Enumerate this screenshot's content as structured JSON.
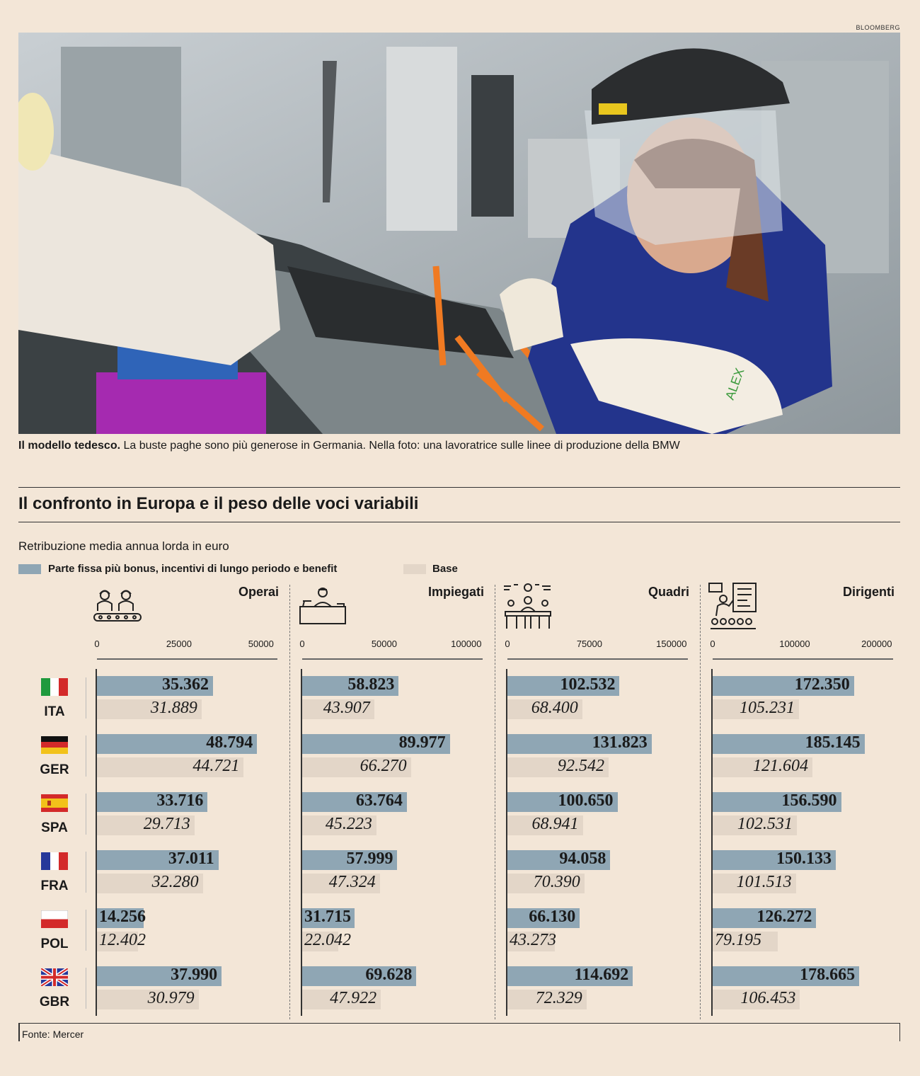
{
  "credit": "BLOOMBERG",
  "caption": {
    "lead": "Il modello tedesco.",
    "text": " La buste paghe sono più generose in Germania. Nella foto: una lavoratrice sulle linee di produzione della BMW"
  },
  "title": "Il confronto in Europa e il peso delle voci variabili",
  "subtitle": "Retribuzione media annua lorda in euro",
  "legend": {
    "total": "Parte fissa più bonus, incentivi di lungo periodo e benefit",
    "base": "Base"
  },
  "colors": {
    "total": "#8fa6b4",
    "base": "#e3d6c8",
    "background": "#f3e6d7"
  },
  "source": "Fonte: Mercer",
  "chart_data": {
    "type": "bar",
    "categories": [
      "ITA",
      "GER",
      "SPA",
      "FRA",
      "POL",
      "GBR"
    ],
    "panels": [
      {
        "name": "Operai",
        "icon": "factory-workers-icon",
        "xlim": [
          0,
          55000
        ],
        "ticks": [
          0,
          25000,
          50000
        ],
        "series": [
          {
            "name": "Parte fissa più bonus, incentivi di lungo periodo e benefit",
            "values": [
              35362,
              48794,
              33716,
              37011,
              14256,
              37990
            ],
            "labels": [
              "35.362",
              "48.794",
              "33.716",
              "37.011",
              "14.256",
              "37.990"
            ]
          },
          {
            "name": "Base",
            "values": [
              31889,
              44721,
              29713,
              32280,
              12402,
              30979
            ],
            "labels": [
              "31.889",
              "44.721",
              "29.713",
              "32.280",
              "12.402",
              "30.979"
            ]
          }
        ]
      },
      {
        "name": "Impiegati",
        "icon": "office-worker-icon",
        "xlim": [
          0,
          110000
        ],
        "ticks": [
          0,
          50000,
          100000
        ],
        "series": [
          {
            "name": "Parte fissa più bonus, incentivi di lungo periodo e benefit",
            "values": [
              58823,
              89977,
              63764,
              57999,
              31715,
              69628
            ],
            "labels": [
              "58.823",
              "89.977",
              "63.764",
              "57.999",
              "31.715",
              "69.628"
            ]
          },
          {
            "name": "Base",
            "values": [
              43907,
              66270,
              45223,
              47324,
              22042,
              47922
            ],
            "labels": [
              "43.907",
              "66.270",
              "45.223",
              "47.324",
              "22.042",
              "47.922"
            ]
          }
        ]
      },
      {
        "name": "Quadri",
        "icon": "meeting-icon",
        "xlim": [
          0,
          165000
        ],
        "ticks": [
          0,
          75000,
          150000
        ],
        "series": [
          {
            "name": "Parte fissa più bonus, incentivi di lungo periodo e benefit",
            "values": [
              102532,
              131823,
              100650,
              94058,
              66130,
              114692
            ],
            "labels": [
              "102.532",
              "131.823",
              "100.650",
              "94.058",
              "66.130",
              "114.692"
            ]
          },
          {
            "name": "Base",
            "values": [
              68400,
              92542,
              68941,
              70390,
              43273,
              72329
            ],
            "labels": [
              "68.400",
              "92.542",
              "68.941",
              "70.390",
              "43.273",
              "72.329"
            ]
          }
        ]
      },
      {
        "name": "Dirigenti",
        "icon": "presenter-icon",
        "xlim": [
          0,
          220000
        ],
        "ticks": [
          0,
          100000,
          200000
        ],
        "series": [
          {
            "name": "Parte fissa più bonus, incentivi di lungo periodo e benefit",
            "values": [
              172350,
              185145,
              156590,
              150133,
              126272,
              178665
            ],
            "labels": [
              "172.350",
              "185.145",
              "156.590",
              "150.133",
              "126.272",
              "178.665"
            ]
          },
          {
            "name": "Base",
            "values": [
              105231,
              121604,
              102531,
              101513,
              79195,
              106453
            ],
            "labels": [
              "105.231",
              "121.604",
              "102.531",
              "101.513",
              "79.195",
              "106.453"
            ]
          }
        ]
      }
    ]
  }
}
